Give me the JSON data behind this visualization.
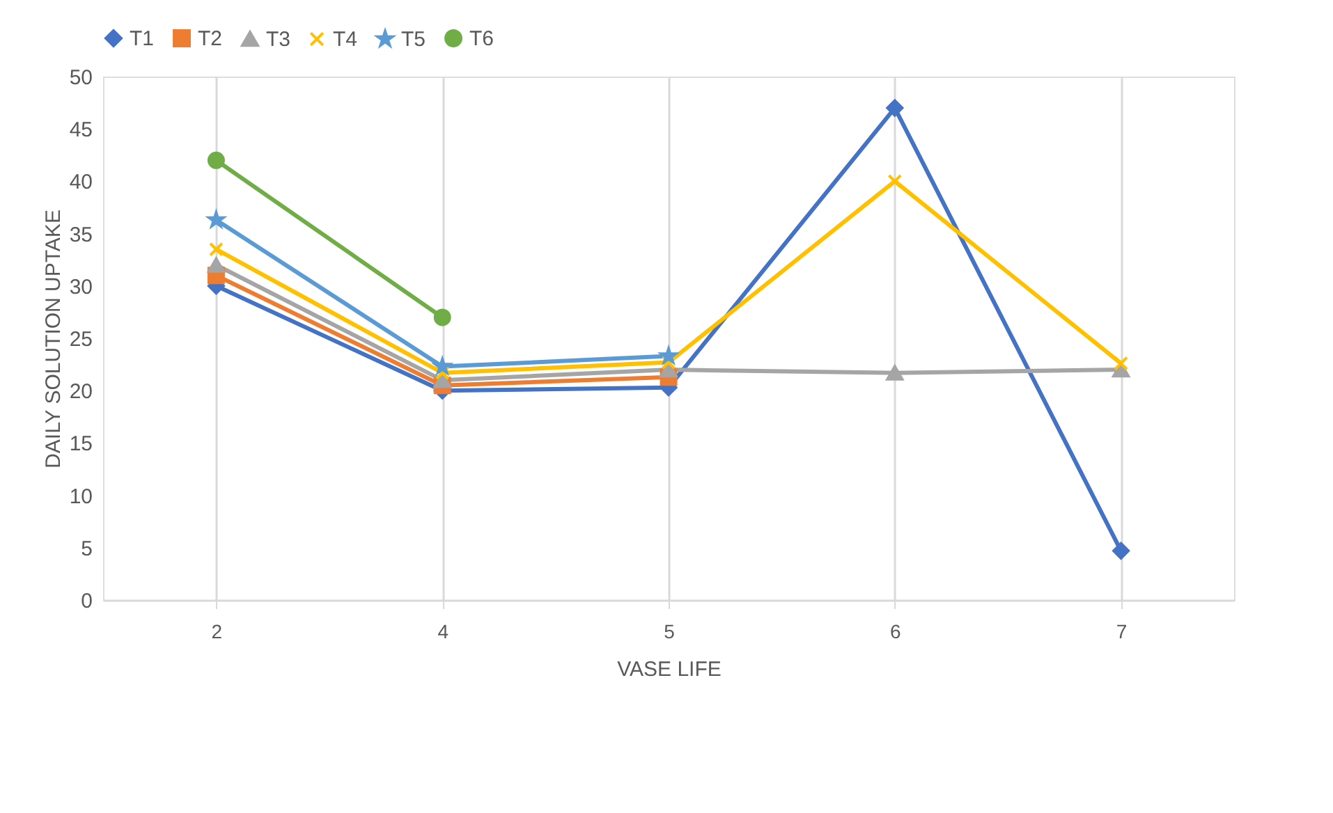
{
  "chart_data": {
    "type": "line",
    "xlabel": "VASE LIFE",
    "ylabel": "DAILY SOLUTION UPTAKE",
    "categories": [
      "2",
      "4",
      "5",
      "6",
      "7"
    ],
    "series": [
      {
        "name": "T1",
        "color": "#4472c4",
        "marker": "diamond",
        "values": [
          30,
          20,
          20.3,
          47,
          4.7
        ]
      },
      {
        "name": "T2",
        "color": "#ed7d31",
        "marker": "square",
        "values": [
          31,
          20.5,
          21.3,
          null,
          null
        ]
      },
      {
        "name": "T3",
        "color": "#a5a5a5",
        "marker": "triangle",
        "values": [
          32,
          21,
          22,
          21.7,
          22
        ]
      },
      {
        "name": "T4",
        "color": "#ffc000",
        "marker": "cross",
        "values": [
          33.5,
          21.7,
          22.7,
          40,
          22.6
        ]
      },
      {
        "name": "T5",
        "color": "#5b9bd5",
        "marker": "star",
        "values": [
          36.3,
          22.3,
          23.3,
          null,
          null
        ]
      },
      {
        "name": "T6",
        "color": "#70ad47",
        "marker": "circle",
        "values": [
          42,
          27,
          null,
          null,
          null
        ]
      }
    ],
    "ylim": [
      0,
      50
    ],
    "yticks": [
      0,
      5,
      10,
      15,
      20,
      25,
      30,
      35,
      40,
      45,
      50
    ],
    "grid": "x",
    "legend": "top",
    "line_style": "solid"
  }
}
